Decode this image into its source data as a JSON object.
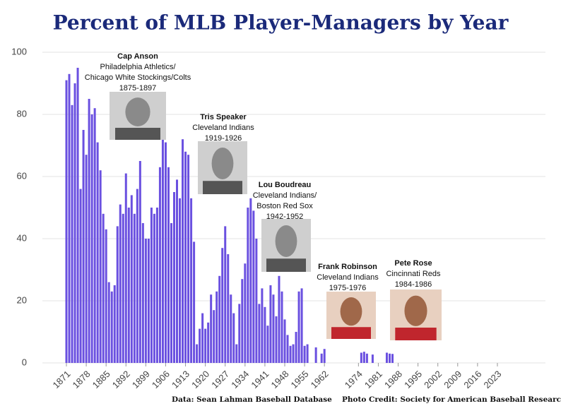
{
  "chart_data": {
    "type": "bar",
    "title": "Percent of MLB Player-Managers by Year",
    "x": [
      1871,
      1872,
      1873,
      1874,
      1875,
      1876,
      1877,
      1878,
      1879,
      1880,
      1881,
      1882,
      1883,
      1884,
      1885,
      1886,
      1887,
      1888,
      1889,
      1890,
      1891,
      1892,
      1893,
      1894,
      1895,
      1896,
      1897,
      1898,
      1899,
      1900,
      1901,
      1902,
      1903,
      1904,
      1905,
      1906,
      1907,
      1908,
      1909,
      1910,
      1911,
      1912,
      1913,
      1914,
      1915,
      1916,
      1917,
      1918,
      1919,
      1920,
      1921,
      1922,
      1923,
      1924,
      1925,
      1926,
      1927,
      1928,
      1929,
      1930,
      1931,
      1932,
      1933,
      1934,
      1935,
      1936,
      1937,
      1938,
      1939,
      1940,
      1941,
      1942,
      1943,
      1944,
      1945,
      1946,
      1947,
      1948,
      1949,
      1950,
      1951,
      1952,
      1953,
      1954,
      1955,
      1956,
      1959,
      1961,
      1962,
      1975,
      1976,
      1977,
      1979,
      1984,
      1985,
      1986
    ],
    "values": [
      91,
      93,
      83,
      90,
      95,
      56,
      75,
      67,
      85,
      80,
      82,
      71,
      62,
      48,
      43,
      26,
      23,
      25,
      44,
      51,
      48,
      61,
      50,
      54,
      48,
      56,
      65,
      45,
      40,
      40,
      50,
      48,
      50,
      63,
      72,
      71,
      63,
      45,
      55,
      59,
      53,
      72,
      68,
      67,
      53,
      39,
      6,
      11,
      16,
      11,
      13,
      22,
      17,
      23,
      28,
      37,
      44,
      35,
      22,
      16,
      6,
      19,
      27,
      32,
      50,
      53,
      49,
      40,
      19,
      24,
      18,
      12,
      25,
      22,
      15,
      28,
      23,
      14,
      9,
      5.5,
      6,
      10,
      23,
      24,
      5.5,
      6,
      5,
      3,
      4.5,
      3.3,
      3.6,
      3,
      2.7,
      3.3,
      3,
      2.9
    ],
    "color": "#6a50e0",
    "xlim": [
      1866,
      2042
    ],
    "xticks": [
      1871,
      1878,
      1885,
      1892,
      1899,
      1906,
      1913,
      1920,
      1927,
      1934,
      1941,
      1948,
      1955,
      1962,
      1974,
      1981,
      1988,
      1995,
      2002,
      2009,
      2016,
      2023
    ],
    "ylim": [
      0,
      100
    ],
    "yticks": [
      0,
      20,
      40,
      60,
      80,
      100
    ],
    "grid": true,
    "annotations": [
      {
        "title": "Cap Anson",
        "lines": [
          "Philadelphia Athletics/",
          "Chicago White Stockings/Colts",
          "1875-1897"
        ]
      },
      {
        "title": "Tris Speaker",
        "lines": [
          "Cleveland Indians",
          "1919-1926"
        ]
      },
      {
        "title": "Lou Boudreau",
        "lines": [
          "Cleveland Indians/",
          "Boston Red Sox",
          "1942-1952"
        ]
      },
      {
        "title": "Frank Robinson",
        "lines": [
          "Cleveland Indians",
          "1975-1976"
        ]
      },
      {
        "title": "Pete Rose",
        "lines": [
          "Cincinnati Reds",
          "1984-1986"
        ]
      }
    ],
    "footer": [
      "Data: Sean Lahman Baseball Database",
      "Photo Credit: Society for American Baseball Research"
    ]
  }
}
